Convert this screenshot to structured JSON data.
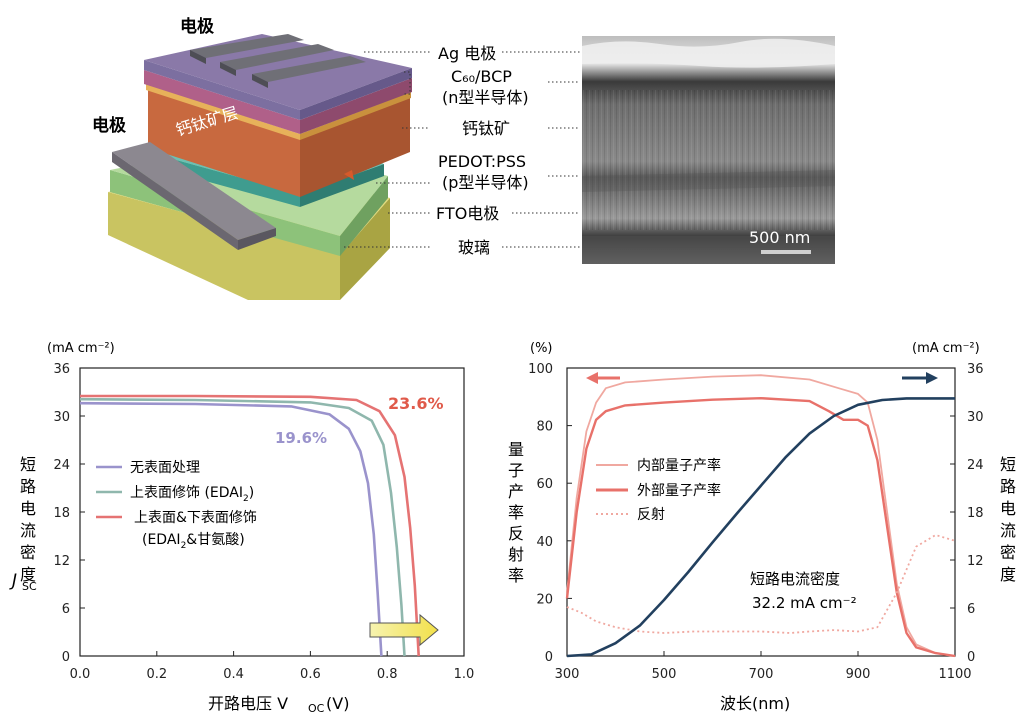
{
  "device": {
    "electrode_top": "电极",
    "electrode_left": "电极",
    "perovskite_layer": "钙钛矿层",
    "layers": [
      {
        "id": "ag",
        "label": "Ag 电极"
      },
      {
        "id": "c60",
        "label": "C₆₀/BCP"
      },
      {
        "id": "c60_sub",
        "label": "(n型半导体)"
      },
      {
        "id": "perovskite",
        "label": "钙钛矿"
      },
      {
        "id": "pedot",
        "label": "PEDOT:PSS"
      },
      {
        "id": "pedot_sub",
        "label": "(p型半导体)"
      },
      {
        "id": "fto",
        "label": "FTO电极"
      },
      {
        "id": "glass",
        "label": "玻璃"
      }
    ],
    "colors": {
      "ag": "#6f6f76",
      "c60": "#8a79a8",
      "perovskite": "#c8693f",
      "pedot": "#3f9c8f",
      "fto": "#8dc27a",
      "glass": "#c9c461",
      "cbp": "#b06089"
    },
    "sem_scale": "500 nm"
  },
  "chart_data": [
    {
      "type": "line",
      "id": "jv",
      "unit_top": "(mA cm⁻²)",
      "ylabel": "短路电流密度",
      "ylabel_symbol": "J",
      "ylabel_sub": "SC",
      "xlabel": "开路电压 V",
      "xlabel_sub": "OC",
      "xlabel_unit": "(V)",
      "xlim": [
        0,
        1.0
      ],
      "ylim": [
        0,
        36
      ],
      "xticks": [
        "0.0",
        "0.2",
        "0.4",
        "0.6",
        "0.8",
        "1.0"
      ],
      "yticks": [
        "0",
        "6",
        "12",
        "18",
        "24",
        "30",
        "36"
      ],
      "legend": "left-middle",
      "series": [
        {
          "name": "无表面处理",
          "color": "#9a93cc",
          "points": [
            [
              0.0,
              31.6
            ],
            [
              0.3,
              31.5
            ],
            [
              0.55,
              31.2
            ],
            [
              0.65,
              30.2
            ],
            [
              0.7,
              28.4
            ],
            [
              0.73,
              25.6
            ],
            [
              0.75,
              21.6
            ],
            [
              0.765,
              15.2
            ],
            [
              0.775,
              8.0
            ],
            [
              0.785,
              0.0
            ]
          ]
        },
        {
          "name": "上表面修饰 (EDAI",
          "name_sub": "2",
          "name_suffix": ")",
          "color": "#8fb7ad",
          "points": [
            [
              0.0,
              32.1
            ],
            [
              0.3,
              32.0
            ],
            [
              0.6,
              31.7
            ],
            [
              0.7,
              31.0
            ],
            [
              0.76,
              29.4
            ],
            [
              0.79,
              26.4
            ],
            [
              0.81,
              20.4
            ],
            [
              0.825,
              13.6
            ],
            [
              0.837,
              6.4
            ],
            [
              0.845,
              0.0
            ]
          ]
        },
        {
          "name": "上表面&下表面修饰",
          "name2": "(EDAI",
          "name2_sub": "2",
          "name2_suffix": "&甘氨酸)",
          "color": "#e57373",
          "points": [
            [
              0.0,
              32.5
            ],
            [
              0.3,
              32.5
            ],
            [
              0.6,
              32.4
            ],
            [
              0.72,
              32.0
            ],
            [
              0.78,
              30.6
            ],
            [
              0.82,
              27.6
            ],
            [
              0.845,
              22.4
            ],
            [
              0.86,
              16.0
            ],
            [
              0.872,
              8.8
            ],
            [
              0.882,
              0.0
            ]
          ]
        }
      ],
      "annotations": [
        {
          "text": "19.6%",
          "color": "#9a93cc"
        },
        {
          "text": "23.6%",
          "color": "#e05a4a"
        }
      ]
    },
    {
      "type": "line",
      "id": "eqe",
      "unit_left": "(%)",
      "unit_right": "(mA cm⁻²)",
      "ylabel_left": "量子产率反射率",
      "ylabel_right": "短路电流密度",
      "xlabel": "波长(nm)",
      "xlim": [
        300,
        1100
      ],
      "ylim_left": [
        0,
        100
      ],
      "ylim_right": [
        0,
        36
      ],
      "xticks": [
        "300",
        "500",
        "700",
        "900",
        "1100"
      ],
      "yticks_left": [
        "0",
        "20",
        "40",
        "60",
        "80",
        "100"
      ],
      "yticks_right": [
        "0",
        "6",
        "12",
        "18",
        "24",
        "30",
        "36"
      ],
      "legend": "left-middle",
      "series": [
        {
          "name": "内部量子产率",
          "axis": "left",
          "color": "#f0a8a0",
          "style": "solid",
          "points": [
            [
              300,
              22
            ],
            [
              320,
              55
            ],
            [
              340,
              78
            ],
            [
              360,
              88
            ],
            [
              380,
              93
            ],
            [
              420,
              95
            ],
            [
              500,
              96
            ],
            [
              600,
              97
            ],
            [
              700,
              97.5
            ],
            [
              800,
              96
            ],
            [
              860,
              93
            ],
            [
              900,
              91
            ],
            [
              920,
              88
            ],
            [
              940,
              75
            ],
            [
              960,
              50
            ],
            [
              980,
              25
            ],
            [
              1000,
              10
            ],
            [
              1020,
              4
            ],
            [
              1060,
              1
            ],
            [
              1100,
              0
            ]
          ]
        },
        {
          "name": "外部量子产率",
          "axis": "left",
          "color": "#e8716a",
          "style": "solid",
          "points": [
            [
              300,
              20
            ],
            [
              320,
              50
            ],
            [
              340,
              72
            ],
            [
              360,
              82
            ],
            [
              380,
              85
            ],
            [
              420,
              87
            ],
            [
              500,
              88
            ],
            [
              600,
              89
            ],
            [
              700,
              89.5
            ],
            [
              800,
              88.5
            ],
            [
              840,
              85
            ],
            [
              870,
              82
            ],
            [
              900,
              82
            ],
            [
              920,
              80
            ],
            [
              940,
              68
            ],
            [
              960,
              45
            ],
            [
              980,
              22
            ],
            [
              1000,
              8
            ],
            [
              1020,
              3
            ],
            [
              1060,
              1
            ],
            [
              1100,
              0
            ]
          ]
        },
        {
          "name": "反射",
          "axis": "left",
          "color": "#f0a8a0",
          "style": "dotted",
          "points": [
            [
              300,
              17
            ],
            [
              330,
              15
            ],
            [
              360,
              12
            ],
            [
              400,
              10
            ],
            [
              450,
              8.5
            ],
            [
              500,
              8
            ],
            [
              560,
              8.5
            ],
            [
              620,
              8.5
            ],
            [
              700,
              8.5
            ],
            [
              760,
              8
            ],
            [
              800,
              8.5
            ],
            [
              850,
              9
            ],
            [
              900,
              8.5
            ],
            [
              940,
              10
            ],
            [
              980,
              22
            ],
            [
              1020,
              38
            ],
            [
              1060,
              42
            ],
            [
              1100,
              40
            ]
          ]
        },
        {
          "name": "短路电流密度",
          "axis": "right",
          "color": "#22405f",
          "style": "solid",
          "points": [
            [
              300,
              0
            ],
            [
              350,
              0.2
            ],
            [
              400,
              1.6
            ],
            [
              450,
              3.8
            ],
            [
              500,
              7.0
            ],
            [
              550,
              10.5
            ],
            [
              600,
              14.2
            ],
            [
              650,
              17.8
            ],
            [
              700,
              21.3
            ],
            [
              750,
              24.8
            ],
            [
              800,
              27.8
            ],
            [
              850,
              30.0
            ],
            [
              900,
              31.4
            ],
            [
              950,
              32.0
            ],
            [
              1000,
              32.2
            ],
            [
              1100,
              32.2
            ]
          ]
        }
      ],
      "annotation_label": "短路电流密度",
      "annotation_value": "32.2 mA cm⁻²"
    }
  ]
}
